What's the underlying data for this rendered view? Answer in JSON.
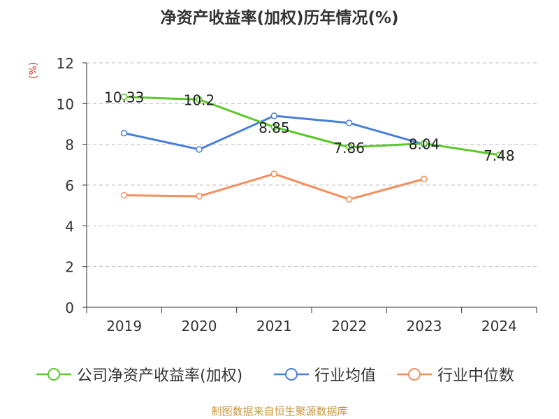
{
  "chart_data": {
    "type": "line",
    "title": "净资产收益率(加权)历年情况(%)",
    "ylabel": "(%)",
    "xlabel": "",
    "categories": [
      "2019",
      "2020",
      "2021",
      "2022",
      "2023",
      "2024"
    ],
    "ylim": [
      0,
      12
    ],
    "yticks": [
      0,
      2,
      4,
      6,
      8,
      10,
      12
    ],
    "grid": true,
    "legend_position": "bottom",
    "series": [
      {
        "name": "公司净资产收益率(加权)",
        "color": "#5ac82a",
        "values": [
          10.33,
          10.2,
          8.85,
          7.86,
          8.04,
          7.48
        ],
        "labels": [
          "10.33",
          "10.2",
          "8.85",
          "7.86",
          "8.04",
          "7.48"
        ]
      },
      {
        "name": "行业均值",
        "color": "#4a7fd9",
        "values": [
          8.55,
          7.75,
          9.4,
          9.05,
          8.0,
          null
        ]
      },
      {
        "name": "行业中位数",
        "color": "#f58e5c",
        "values": [
          5.5,
          5.45,
          6.55,
          5.3,
          6.3,
          null
        ]
      }
    ]
  },
  "source": "制图数据来自恒生聚源数据库"
}
